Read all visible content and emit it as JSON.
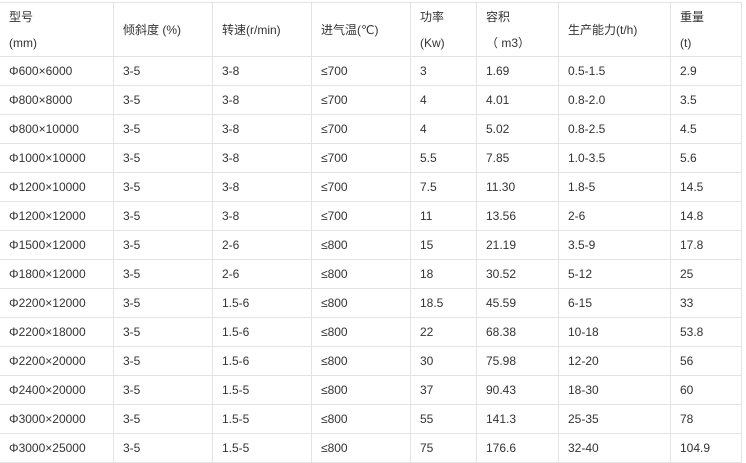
{
  "header": [
    {
      "line1": "型号",
      "line2": "(mm)"
    },
    {
      "line1": "倾斜度 (%)",
      "line2": ""
    },
    {
      "line1": "转速(r/min)",
      "line2": ""
    },
    {
      "line1": "进气温(℃)",
      "line2": ""
    },
    {
      "line1": "功率",
      "line2": "(Kw)"
    },
    {
      "line1": "容积",
      "line2": "（ m3）"
    },
    {
      "line1": "生产能力(t/h)",
      "line2": ""
    },
    {
      "line1": "重量",
      "line2": "(t)"
    }
  ],
  "rows": [
    [
      "Φ600×6000",
      "3-5",
      "3-8",
      "≤700",
      "3",
      "1.69",
      "0.5-1.5",
      "2.9"
    ],
    [
      "Φ800×8000",
      "3-5",
      "3-8",
      "≤700",
      "4",
      "4.01",
      "0.8-2.0",
      "3.5"
    ],
    [
      "Φ800×10000",
      "3-5",
      "3-8",
      "≤700",
      "4",
      "5.02",
      "0.8-2.5",
      "4.5"
    ],
    [
      "Φ1000×10000",
      "3-5",
      "3-8",
      "≤700",
      "5.5",
      "7.85",
      "1.0-3.5",
      "5.6"
    ],
    [
      "Φ1200×10000",
      "3-5",
      "3-8",
      "≤700",
      "7.5",
      "11.30",
      "1.8-5",
      "14.5"
    ],
    [
      "Φ1200×12000",
      "3-5",
      "3-8",
      "≤700",
      "11",
      "13.56",
      "2-6",
      "14.8"
    ],
    [
      "Φ1500×12000",
      "3-5",
      "2-6",
      "≤800",
      "15",
      "21.19",
      "3.5-9",
      "17.8"
    ],
    [
      "Φ1800×12000",
      "3-5",
      "2-6",
      "≤800",
      "18",
      "30.52",
      "5-12",
      "25"
    ],
    [
      "Φ2200×12000",
      "3-5",
      "1.5-6",
      "≤800",
      "18.5",
      "45.59",
      "6-15",
      "33"
    ],
    [
      "Φ2200×18000",
      "3-5",
      "1.5-6",
      "≤800",
      "22",
      "68.38",
      "10-18",
      "53.8"
    ],
    [
      "Φ2200×20000",
      "3-5",
      "1.5-6",
      "≤800",
      "30",
      "75.98",
      "12-20",
      "56"
    ],
    [
      "Φ2400×20000",
      "3-5",
      "1.5-5",
      "≤800",
      "37",
      "90.43",
      "18-30",
      "60"
    ],
    [
      "Φ3000×20000",
      "3-5",
      "1.5-5",
      "≤800",
      "55",
      "141.3",
      "25-35",
      "78"
    ],
    [
      "Φ3000×25000",
      "3-5",
      "1.5-5",
      "≤800",
      "75",
      "176.6",
      "32-40",
      "104.9"
    ]
  ]
}
